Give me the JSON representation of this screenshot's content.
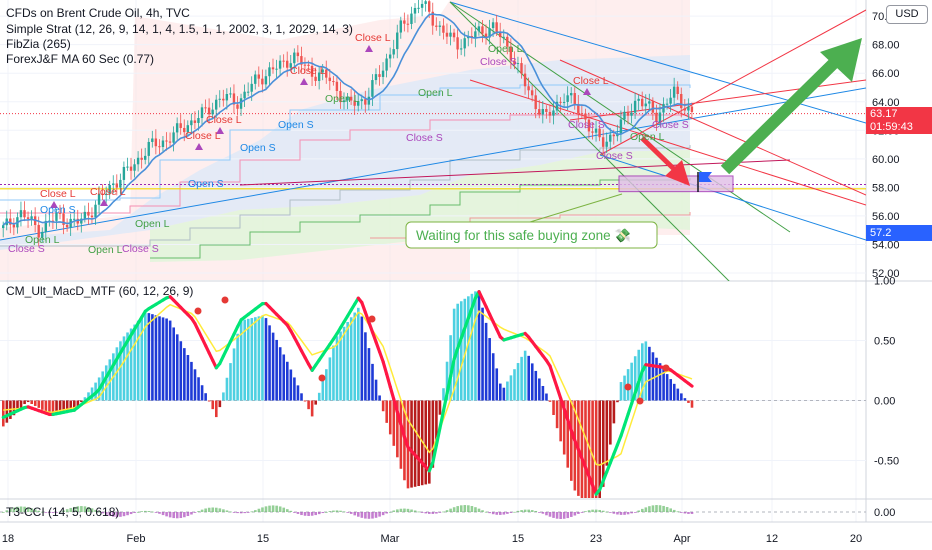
{
  "legend": {
    "symbol_line": "CFDs on Brent Crude Oil, 4h, TVC",
    "indicator_1": "Simple Strat (12, 26, 9, 14, 1, 4, 1.5, 1, 1, 2002, 3, 1, 2029, 14, 3)",
    "indicator_2": "FibZia (265)",
    "indicator_3": "ForexJ&F MA 60 Sec (0.77)"
  },
  "panes": {
    "macd_title": "CM_Ult_MacD_MTF (60, 12, 26, 9)",
    "cci_title": "T3-CCI (14, 5, 0.618)"
  },
  "currency_button": "USD",
  "price_axis": {
    "current_price": "63.17",
    "countdown": "01:59:43",
    "level_tag": "57.2"
  },
  "annotation": {
    "text": "Waiting for this safe buying zone 💸"
  },
  "colors": {
    "bull": "#26a69a",
    "bear": "#ef5350",
    "macd_up": "#00e676",
    "macd_down": "#ff1744",
    "arrow": "#4caf50",
    "zone": "#e1bee7",
    "blue_tag": "#2962ff",
    "red_tag": "#f23645"
  },
  "chart_data": [
    {
      "type": "candlestick",
      "title": "CFDs on Brent Crude Oil, 4h, TVC",
      "x_ticks": [
        "18",
        "Feb",
        "15",
        "Mar",
        "15",
        "23",
        "Apr",
        "12",
        "20"
      ],
      "y_ticks": [
        52,
        54,
        56,
        58,
        60,
        62,
        64,
        66,
        68,
        70
      ],
      "ylim": [
        51.9,
        71.6
      ],
      "current_price": 63.17,
      "anchor_closes": [
        55.1,
        56.2,
        55.0,
        56.0,
        55.4,
        56.6,
        58.2,
        59.3,
        60.8,
        61.3,
        62.3,
        63.1,
        64.3,
        64.0,
        65.6,
        66.3,
        67.2,
        66.1,
        65.6,
        63.8,
        64.2,
        66.5,
        69.3,
        71.0,
        69.3,
        68.0,
        68.7,
        69.3,
        67.5,
        64.6,
        62.8,
        64.6,
        63.0,
        61.0,
        62.2,
        64.3,
        63.0,
        64.6,
        63.2
      ],
      "markers": {
        "close_l": [
          "Close L",
          "Close L",
          "Close L",
          "Close L",
          "Close L",
          "Close L",
          "Close L"
        ],
        "close_s": [
          "Close S",
          "Close S",
          "Close S",
          "Close S",
          "Close S",
          "Close S",
          "Close S"
        ],
        "open_l": [
          "Open L",
          "Open L",
          "Open L",
          "Open L",
          "Open L",
          "Open L",
          "Open L"
        ],
        "open_s": [
          "Open S",
          "Open S",
          "Open S",
          "Open S"
        ]
      },
      "buy_zone": [
        57.7,
        58.8
      ]
    },
    {
      "type": "histogram",
      "title": "CM_Ult_MacD_MTF (60, 12, 26, 9)",
      "y_ticks": [
        -0.5,
        0.0,
        0.5,
        1.0
      ],
      "ylim": [
        -0.83,
        1.03
      ],
      "macd_line": [
        -0.14,
        -0.05,
        -0.12,
        -0.08,
        0.08,
        0.42,
        0.75,
        0.87,
        0.67,
        0.26,
        0.67,
        0.82,
        0.62,
        0.25,
        0.54,
        0.87,
        0.32,
        -0.38,
        -0.6,
        0.36,
        0.92,
        0.5,
        0.56,
        0.3,
        -0.3,
        -0.8,
        -0.3,
        0.3,
        0.27,
        0.12
      ],
      "signal_line": [
        -0.08,
        -0.06,
        -0.1,
        -0.06,
        0.02,
        0.3,
        0.62,
        0.8,
        0.72,
        0.4,
        0.55,
        0.72,
        0.65,
        0.38,
        0.45,
        0.75,
        0.45,
        -0.15,
        -0.45,
        0.1,
        0.75,
        0.6,
        0.52,
        0.38,
        -0.05,
        -0.55,
        -0.45,
        0.15,
        0.25,
        0.18
      ]
    },
    {
      "type": "line",
      "title": "T3-CCI (14, 5, 0.618)",
      "y_ticks": [
        0.0
      ]
    }
  ]
}
